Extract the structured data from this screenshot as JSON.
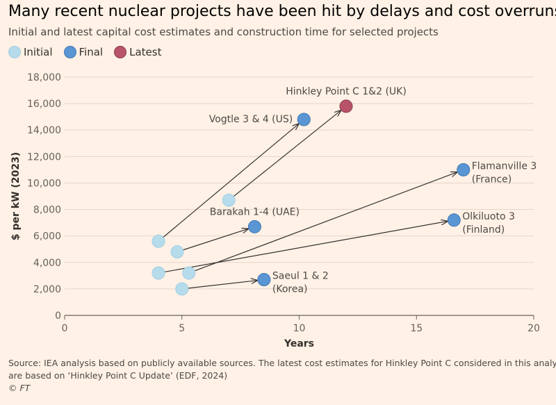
{
  "title": "Many recent nuclear projects have been hit by delays and cost overruns",
  "subtitle": "Initial and latest capital cost estimates and construction time for selected projects",
  "legend": [
    {
      "label": "Initial",
      "color": "#b6dbeb",
      "stroke": "#a0cfe2"
    },
    {
      "label": "Final",
      "color": "#5a96d3",
      "stroke": "#3f76b3"
    },
    {
      "label": "Latest",
      "color": "#b8536a",
      "stroke": "#8c3a4e"
    }
  ],
  "footnote": {
    "line1": "Source: IEA analysis based on publicly available sources. The latest cost estimates for Hinkley Point C considered in this analysis",
    "line2": "are based on ‘Hinkley Point C Update’ (EDF, 2024)",
    "copyright": "© FT"
  },
  "chart_data": {
    "type": "scatter",
    "xlabel": "Years",
    "ylabel": "$ per kW (2023)",
    "xlim": [
      0,
      20
    ],
    "ylim": [
      0,
      18000
    ],
    "xticks": [
      0,
      5,
      10,
      15,
      20
    ],
    "yticks": [
      0,
      2000,
      4000,
      6000,
      8000,
      10000,
      12000,
      14000,
      16000,
      18000
    ],
    "grid": "horizontal",
    "projects": [
      {
        "name": "Vogtle 3 & 4 (US)",
        "initial": [
          4.0,
          5600
        ],
        "end": [
          10.2,
          14800
        ],
        "end_type": "Final"
      },
      {
        "name": "Hinkley Point C 1&2 (UK)",
        "initial": [
          7.0,
          8700
        ],
        "end": [
          12.0,
          15800
        ],
        "end_type": "Latest"
      },
      {
        "name": "Flamanville 3 (France)",
        "initial": [
          5.3,
          3200
        ],
        "end": [
          17.0,
          11000
        ],
        "end_type": "Final"
      },
      {
        "name": "Olkiluoto 3 (Finland)",
        "initial": [
          4.0,
          3200
        ],
        "end": [
          16.6,
          7200
        ],
        "end_type": "Final"
      },
      {
        "name": "Barakah 1-4 (UAE)",
        "initial": [
          4.8,
          4800
        ],
        "end": [
          8.1,
          6700
        ],
        "end_type": "Final"
      },
      {
        "name": "Saeul 1 & 2 (Korea)",
        "initial": [
          5.0,
          2000
        ],
        "end": [
          8.5,
          2700
        ],
        "end_type": "Final"
      }
    ],
    "labels": [
      {
        "project": 0,
        "lines": [
          "Vogtle 3 & 4 (US)"
        ],
        "anchor": "end"
      },
      {
        "project": 1,
        "lines": [
          "Hinkley Point C 1&2 (UK)"
        ],
        "anchor": "middle"
      },
      {
        "project": 2,
        "lines": [
          "Flamanville 3",
          "(France)"
        ],
        "anchor": "start"
      },
      {
        "project": 3,
        "lines": [
          "Olkiluoto 3",
          "(Finland)"
        ],
        "anchor": "start"
      },
      {
        "project": 4,
        "lines": [
          "Barakah 1-4 (UAE)"
        ],
        "anchor": "middle"
      },
      {
        "project": 5,
        "lines": [
          "Saeul 1 & 2",
          "(Korea)"
        ],
        "anchor": "start"
      }
    ]
  }
}
